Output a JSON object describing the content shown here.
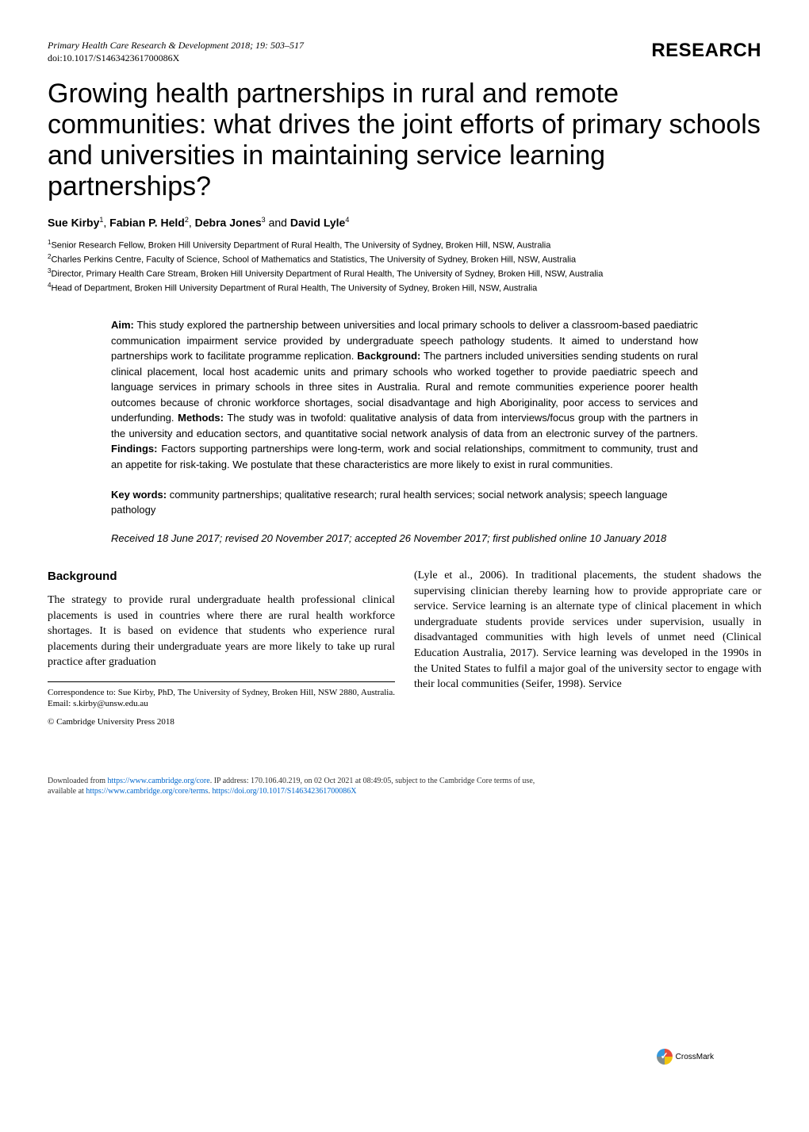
{
  "header": {
    "journal": "Primary Health Care Research & Development",
    "year_pages": "2018; 19: 503–517",
    "doi": "doi:10.1017/S146342361700086X",
    "section_label": "RESEARCH"
  },
  "title": "Growing health partnerships in rural and remote communities: what drives the joint efforts of primary schools and universities in maintaining service learning partnerships?",
  "authors_line_prefix": "",
  "authors": [
    {
      "name": "Sue Kirby",
      "sup": "1"
    },
    {
      "name": "Fabian P. Held",
      "sup": "2"
    },
    {
      "name": "Debra Jones",
      "sup": "3"
    },
    {
      "name": "David Lyle",
      "sup": "4"
    }
  ],
  "affiliations": [
    {
      "sup": "1",
      "text": "Senior Research Fellow, Broken Hill University Department of Rural Health, The University of Sydney, Broken Hill, NSW, Australia"
    },
    {
      "sup": "2",
      "text": "Charles Perkins Centre, Faculty of Science, School of Mathematics and Statistics, The University of Sydney, Broken Hill, NSW, Australia"
    },
    {
      "sup": "3",
      "text": "Director, Primary Health Care Stream, Broken Hill University Department of Rural Health, The University of Sydney, Broken Hill, NSW, Australia"
    },
    {
      "sup": "4",
      "text": "Head of Department, Broken Hill University Department of Rural Health, The University of Sydney, Broken Hill, NSW, Australia"
    }
  ],
  "abstract": {
    "aim_label": "Aim:",
    "aim_text": " This study explored the partnership between universities and local primary schools to deliver a classroom-based paediatric communication impairment service provided by undergraduate speech pathology students. It aimed to understand how partnerships work to facilitate programme replication. ",
    "background_label": "Background:",
    "background_text": " The partners included universities sending students on rural clinical placement, local host academic units and primary schools who worked together to provide paediatric speech and language services in primary schools in three sites in Australia. Rural and remote communities experience poorer health outcomes because of chronic workforce shortages, social disadvantage and high Aboriginality, poor access to services and underfunding. ",
    "methods_label": "Methods:",
    "methods_text": " The study was in twofold: qualitative analysis of data from interviews/focus group with the partners in the university and education sectors, and quantitative social network analysis of data from an electronic survey of the partners. ",
    "findings_label": "Findings:",
    "findings_text": " Factors supporting partnerships were long-term, work and social relationships, commitment to community, trust and an appetite for risk-taking. We postulate that these characteristics are more likely to exist in rural communities."
  },
  "keywords": {
    "label": "Key words:",
    "text": " community partnerships; qualitative research; rural health services; social network analysis; speech language pathology"
  },
  "dates": "Received 18 June 2017; revised 20 November 2017; accepted 26 November 2017; first published online 10 January 2018",
  "body": {
    "heading": "Background",
    "col1": "The strategy to provide rural undergraduate health professional clinical placements is used in countries where there are rural health workforce shortages. It is based on evidence that students who experience rural placements during their undergraduate years are more likely to take up rural practice after graduation",
    "col2": "(Lyle et al., 2006). In traditional placements, the student shadows the supervising clinician thereby learning how to provide appropriate care or service. Service learning is an alternate type of clinical placement in which undergraduate students provide services under supervision, usually in disadvantaged communities with high levels of unmet need (Clinical Education Australia, 2017). Service learning was developed in the 1990s in the United States to fulfil a major goal of the university sector to engage with their local communities (Seifer, 1998). Service"
  },
  "correspondence": "Correspondence to: Sue Kirby, PhD, The University of Sydney, Broken Hill, NSW 2880, Australia. Email: s.kirby@unsw.edu.au",
  "copyright": "© Cambridge University Press 2018",
  "footer": {
    "line1_pre": "Downloaded from ",
    "line1_url": "https://www.cambridge.org/core",
    "line1_post": ". IP address: 170.106.40.219, on 02 Oct 2021 at 08:49:05, subject to the Cambridge Core terms of use,",
    "line2_pre": "available at ",
    "line2_url1": "https://www.cambridge.org/core/terms",
    "line2_mid": ". ",
    "line2_url2": "https://doi.org/10.1017/S146342361700086X"
  },
  "crossmark_label": "CrossMark"
}
